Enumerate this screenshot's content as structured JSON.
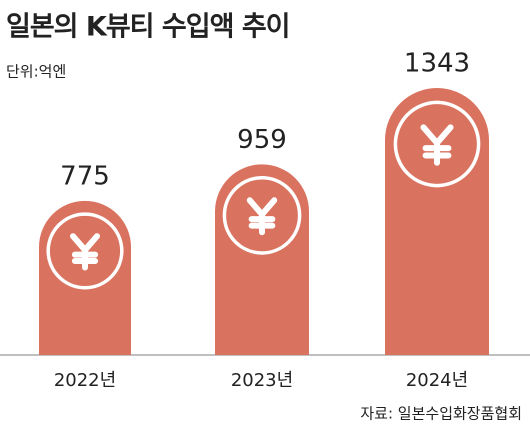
{
  "chart_data": {
    "type": "bar",
    "title": "일본의 K뷰티 수입액 추이",
    "subtitle": "단위:억엔",
    "source": "자료: 일본수입화장품협회",
    "categories": [
      "2022년",
      "2023년",
      "2024년"
    ],
    "values": [
      775,
      959,
      1343
    ],
    "color": "#d9735f"
  }
}
